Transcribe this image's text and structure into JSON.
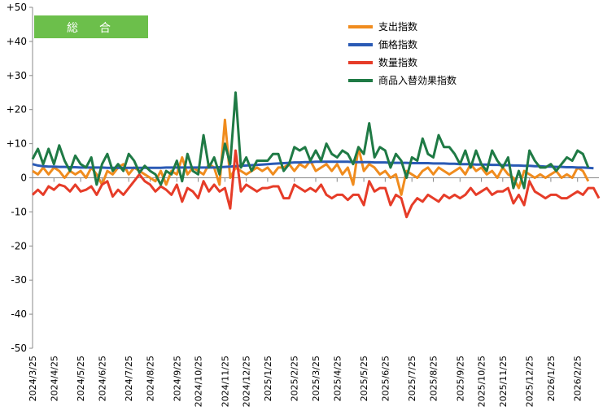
{
  "chart_data": {
    "type": "line",
    "title": "",
    "badge_label": "総　合",
    "badge_color": "#6cbf4b",
    "ylim": [
      -50,
      50
    ],
    "yticks": [
      50,
      40,
      30,
      20,
      10,
      0,
      -10,
      -20,
      -30,
      -40,
      -50
    ],
    "ytick_labels": [
      "+50",
      "+40",
      "+30",
      "+20",
      "+10",
      "0",
      "-10",
      "-20",
      "-30",
      "-40",
      "-50"
    ],
    "x_range": [
      0,
      106
    ],
    "x_labels": [
      {
        "i": 0,
        "label": "2024/3/25"
      },
      {
        "i": 4,
        "label": "2024/4/25"
      },
      {
        "i": 9,
        "label": "2024/5/25"
      },
      {
        "i": 13,
        "label": "2024/6/25"
      },
      {
        "i": 18,
        "label": "2024/7/25"
      },
      {
        "i": 22,
        "label": "2024/8/25"
      },
      {
        "i": 27,
        "label": "2024/9/25"
      },
      {
        "i": 31,
        "label": "2024/10/25"
      },
      {
        "i": 36,
        "label": "2024/11/25"
      },
      {
        "i": 40,
        "label": "2024/12/25"
      },
      {
        "i": 44,
        "label": "2025/1/25"
      },
      {
        "i": 49,
        "label": "2025/2/25"
      },
      {
        "i": 53,
        "label": "2025/3/25"
      },
      {
        "i": 57,
        "label": "2025/4/25"
      },
      {
        "i": 62,
        "label": "2025/5/25"
      },
      {
        "i": 66,
        "label": "2025/6/25"
      },
      {
        "i": 71,
        "label": "2025/7/25"
      },
      {
        "i": 75,
        "label": "2025/8/25"
      },
      {
        "i": 80,
        "label": "2025/9/25"
      },
      {
        "i": 84,
        "label": "2025/10/25"
      },
      {
        "i": 88,
        "label": "2025/11/25"
      },
      {
        "i": 93,
        "label": "2025/12/25"
      },
      {
        "i": 97,
        "label": "2026/1/25"
      },
      {
        "i": 102,
        "label": "2026/2/25"
      }
    ],
    "grid": false,
    "legend_position": "top-right",
    "series": [
      {
        "name": "支出指数",
        "color": "#f08c1e",
        "values": [
          2,
          1,
          3,
          1,
          3,
          2,
          0,
          2,
          1,
          2,
          0,
          3,
          1,
          -2,
          2,
          1,
          3,
          4,
          1,
          3,
          2,
          1,
          0,
          -1,
          2,
          -2,
          2,
          1,
          6,
          1,
          3,
          2,
          1,
          4,
          3,
          -2,
          17,
          0,
          3,
          2,
          1,
          2,
          3,
          2,
          3,
          1,
          3,
          3,
          4,
          2,
          4,
          3,
          5,
          2,
          3,
          4,
          2,
          4,
          1,
          3,
          -2,
          9,
          2,
          4,
          3,
          1,
          2,
          0,
          1,
          -5,
          2,
          1,
          0,
          2,
          3,
          1,
          3,
          2,
          1,
          2,
          3,
          1,
          4,
          2,
          3,
          1,
          2,
          0,
          3,
          1,
          0,
          -3,
          2,
          1,
          0,
          1,
          0,
          1,
          2,
          0,
          1,
          0,
          3,
          2,
          -1
        ]
      },
      {
        "name": "価格指数",
        "color": "#2a5ab5",
        "values": [
          4,
          3.6,
          3.4,
          3.3,
          3.3,
          3.2,
          3.2,
          3.1,
          3.1,
          3,
          3,
          3,
          3,
          3,
          2.9,
          2.9,
          2.9,
          2.9,
          2.9,
          2.9,
          2.9,
          2.9,
          2.9,
          2.9,
          2.9,
          3,
          3,
          3,
          3,
          3,
          3,
          3,
          3,
          3,
          3,
          3.1,
          3.2,
          3.3,
          3.4,
          3.5,
          3.6,
          3.7,
          3.8,
          3.9,
          4,
          4.1,
          4.2,
          4.3,
          4.4,
          4.5,
          4.5,
          4.6,
          4.6,
          4.7,
          4.7,
          4.7,
          4.7,
          4.7,
          4.7,
          4.7,
          4.6,
          4.6,
          4.6,
          4.6,
          4.5,
          4.5,
          4.5,
          4.4,
          4.4,
          4.4,
          4.4,
          4.3,
          4.3,
          4.3,
          4.3,
          4.2,
          4.2,
          4.2,
          4.1,
          4.1,
          4,
          4,
          4,
          3.9,
          3.9,
          3.9,
          3.8,
          3.8,
          3.7,
          3.7,
          3.6,
          3.6,
          3.5,
          3.5,
          3.4,
          3.4,
          3.3,
          3.3,
          3.2,
          3.2,
          3.1,
          3.1,
          3,
          3,
          2.9,
          2.8
        ]
      },
      {
        "name": "数量指数",
        "color": "#e63c28",
        "values": [
          -5,
          -3.5,
          -5,
          -2.5,
          -3.5,
          -2,
          -2.5,
          -4,
          -2,
          -4,
          -3.5,
          -2.5,
          -5,
          -2,
          -1,
          -5.5,
          -3.5,
          -5,
          -3,
          -1,
          1,
          -1,
          -2,
          -4,
          -2.5,
          -3.5,
          -5,
          -2,
          -7,
          -3,
          -4,
          -6,
          -1,
          -4,
          -2,
          -4,
          -3,
          -9,
          8,
          -4,
          -2,
          -3,
          -4,
          -3,
          -3,
          -2.5,
          -2.5,
          -6,
          -6,
          -2,
          -3,
          -4,
          -3,
          -4,
          -2,
          -5,
          -6,
          -5,
          -5,
          -6.5,
          -5,
          -5,
          -8,
          -1,
          -4,
          -3,
          -3,
          -8,
          -5,
          -6,
          -11.5,
          -8,
          -6,
          -7,
          -5,
          -6,
          -7,
          -5,
          -6,
          -5,
          -6,
          -5,
          -3,
          -5,
          -4,
          -3,
          -5,
          -4,
          -4,
          -3,
          -7.5,
          -5,
          -8,
          -1,
          -4,
          -5,
          -6,
          -5,
          -5,
          -6,
          -6,
          -5,
          -4,
          -5,
          -3,
          -3,
          -6
        ]
      },
      {
        "name": "商品入替効果指数",
        "color": "#1f7a45",
        "values": [
          5.5,
          8.5,
          4,
          8.5,
          4,
          9.5,
          5,
          2,
          6.5,
          4,
          3,
          6,
          -2,
          4,
          7,
          2,
          4,
          2,
          7,
          5,
          1.5,
          3.5,
          2,
          1,
          -2,
          2,
          1,
          5,
          -1,
          7,
          2,
          1,
          12.5,
          3,
          6,
          1,
          10,
          4,
          25,
          3,
          6,
          2,
          5,
          5,
          5,
          7,
          7,
          2,
          4,
          9,
          8,
          9,
          5,
          8,
          5,
          10,
          7,
          6,
          8,
          7,
          4,
          9,
          7,
          16,
          6,
          9,
          8,
          3,
          7,
          5,
          0,
          6,
          5,
          11.5,
          7,
          6,
          12.5,
          9,
          9,
          7,
          4,
          8,
          3,
          8,
          4,
          2,
          8,
          5,
          3,
          6,
          -3,
          2,
          -3,
          8,
          5,
          3,
          3,
          4,
          2,
          4,
          6,
          5,
          8,
          7,
          3
        ]
      }
    ]
  }
}
